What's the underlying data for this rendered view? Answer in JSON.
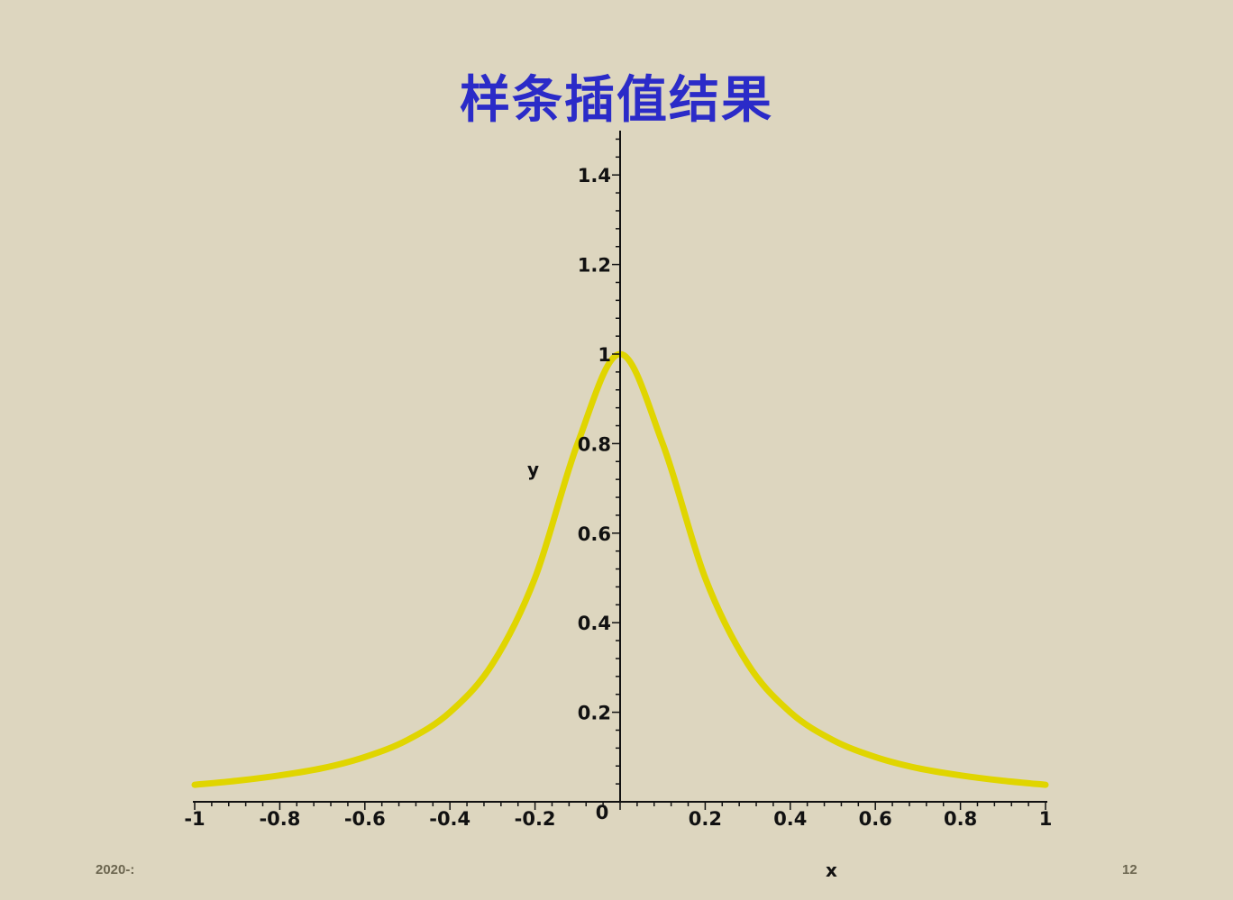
{
  "slide": {
    "title": "样条插值结果",
    "footer_date": "2020-:",
    "page_number": "12"
  },
  "colors": {
    "background": "#ddd6bf",
    "title": "#2b2bc8",
    "spline_curve": "#e0d500",
    "original_curve": "#111111",
    "axes": "#111111"
  },
  "chart_data": {
    "type": "line",
    "title": "",
    "xlabel": "x",
    "ylabel": "y",
    "xlim": [
      -1,
      1
    ],
    "ylim": [
      0,
      1.5
    ],
    "x_ticks": [
      -1,
      -0.8,
      -0.6,
      -0.4,
      -0.2,
      0,
      0.2,
      0.4,
      0.6,
      0.8,
      1
    ],
    "x_tick_labels": [
      "-1",
      "-0.8",
      "-0.6",
      "-0.4",
      "-0.2",
      "0",
      "0.2",
      "0.4",
      "0.6",
      "0.8",
      "1"
    ],
    "y_ticks": [
      0.2,
      0.4,
      0.6,
      0.8,
      1,
      1.2,
      1.4
    ],
    "y_tick_labels": [
      "0.2",
      "0.4",
      "0.6",
      "0.8",
      "1",
      "1.2",
      "1.4"
    ],
    "grid": false,
    "x": [
      -1,
      -0.9,
      -0.8,
      -0.7,
      -0.6,
      -0.5,
      -0.4,
      -0.3,
      -0.2,
      -0.1,
      0,
      0.1,
      0.2,
      0.3,
      0.4,
      0.5,
      0.6,
      0.7,
      0.8,
      0.9,
      1
    ],
    "series": [
      {
        "role": "spline",
        "values": [
          0.038,
          0.047,
          0.059,
          0.075,
          0.1,
          0.138,
          0.2,
          0.308,
          0.5,
          0.8,
          1,
          0.8,
          0.5,
          0.308,
          0.2,
          0.138,
          0.1,
          0.075,
          0.059,
          0.047,
          0.038
        ]
      },
      {
        "role": "original",
        "values": [
          0.038,
          0.047,
          0.059,
          0.075,
          0.1,
          0.138,
          0.2,
          0.308,
          0.5,
          0.8,
          1,
          0.8,
          0.5,
          0.308,
          0.2,
          0.138,
          0.1,
          0.075,
          0.059,
          0.047,
          0.038
        ]
      }
    ]
  }
}
